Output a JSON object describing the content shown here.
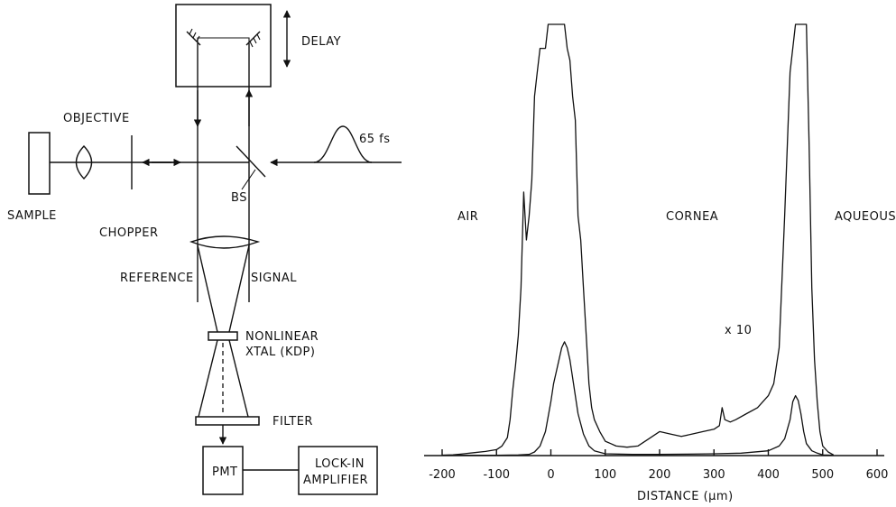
{
  "diagram": {
    "delay_label": "DELAY",
    "objective_label": "OBJECTIVE",
    "pulse_label": "65 fs",
    "sample_label": "SAMPLE",
    "chopper_label": "CHOPPER",
    "bs_label": "BS",
    "reference_label": "REFERENCE",
    "signal_label": "SIGNAL",
    "xtal_label_line1": "NONLINEAR",
    "xtal_label_line2": "XTAL (KDP)",
    "filter_label": "FILTER",
    "pmt_label": "PMT",
    "lockin_line1": "LOCK-IN",
    "lockin_line2": "AMPLIFIER"
  },
  "chart_data": {
    "type": "line",
    "region_labels": [
      "AIR",
      "CORNEA",
      "AQUEOUS"
    ],
    "annotation": "x 10",
    "xlabel": "DISTANCE (μm)",
    "ylabel": "",
    "xlim": [
      -200,
      600
    ],
    "x_ticks": [
      "-200",
      "-100",
      "0",
      "100",
      "200",
      "300",
      "400",
      "500",
      "600"
    ],
    "series": [
      {
        "x": [
          -200,
          -180,
          -160,
          -140,
          -120,
          -100,
          -90,
          -80,
          -75,
          -70,
          -65,
          -60,
          -55,
          -50,
          -45,
          -40,
          -35,
          -30,
          -25,
          -20,
          -15,
          -10,
          -5,
          0,
          5,
          10,
          15,
          20,
          25,
          30,
          35,
          40,
          45,
          50,
          55,
          60,
          65,
          70,
          75,
          80,
          90,
          100,
          110,
          120,
          140,
          160,
          180,
          200,
          220,
          240,
          260,
          280,
          300,
          310,
          315,
          320,
          330,
          340,
          360,
          380,
          400,
          410,
          420,
          430,
          440,
          450,
          455,
          460,
          465,
          470,
          475,
          480,
          485,
          490,
          495,
          500,
          510,
          520
        ],
        "y": [
          0.4,
          0.6,
          1.5,
          2.5,
          3.5,
          5,
          8,
          15,
          30,
          55,
          75,
          100,
          140,
          220,
          180,
          200,
          230,
          300,
          320,
          340,
          340,
          340,
          360,
          360,
          360,
          360,
          360,
          360,
          360,
          340,
          330,
          300,
          280,
          200,
          180,
          140,
          100,
          60,
          40,
          30,
          20,
          12,
          10,
          8,
          7,
          8,
          14,
          20,
          18,
          16,
          18,
          20,
          22,
          25,
          40,
          30,
          28,
          30,
          35,
          40,
          50,
          60,
          90,
          200,
          320,
          360,
          360,
          360,
          360,
          360,
          260,
          140,
          80,
          45,
          20,
          8,
          3,
          0.5
        ]
      },
      {
        "x": [
          -200,
          -100,
          -60,
          -40,
          -30,
          -20,
          -10,
          0,
          5,
          10,
          15,
          20,
          25,
          30,
          35,
          40,
          45,
          50,
          60,
          70,
          80,
          100,
          150,
          200,
          250,
          300,
          350,
          400,
          420,
          430,
          440,
          445,
          450,
          455,
          460,
          465,
          470,
          480,
          490,
          500,
          520
        ],
        "y": [
          0.2,
          0.3,
          0.5,
          1,
          3,
          8,
          20,
          45,
          60,
          70,
          80,
          90,
          95,
          90,
          80,
          65,
          50,
          35,
          18,
          8,
          4,
          1.5,
          1,
          1,
          1.2,
          1.5,
          2,
          4,
          8,
          14,
          30,
          45,
          50,
          46,
          35,
          20,
          10,
          4,
          2,
          0.5,
          0.2
        ]
      }
    ]
  }
}
